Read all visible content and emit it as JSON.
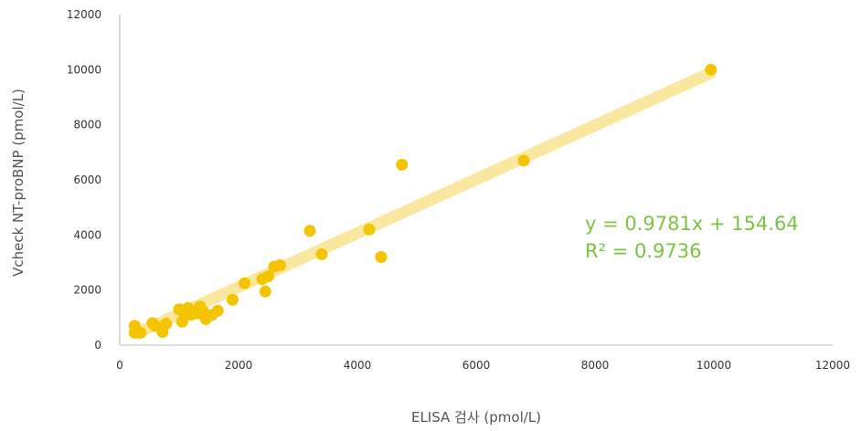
{
  "chart_data": {
    "type": "scatter",
    "title": "",
    "xlabel": "ELISA 검사 (pmol/L)",
    "ylabel": "Vcheck NT-proBNP (pmol/L)",
    "xlim": [
      0,
      12000
    ],
    "ylim": [
      0,
      12000
    ],
    "x_ticks": [
      "0",
      "2000",
      "4000",
      "6000",
      "8000",
      "10000",
      "12000"
    ],
    "y_ticks": [
      "0",
      "2000",
      "4000",
      "6000",
      "8000",
      "10000",
      "12000"
    ],
    "grid": false,
    "colors": {
      "points": "#f5c400",
      "trendline": "#fbe8a0",
      "equation": "#7cc242",
      "axis": "#bdbdbd"
    },
    "trendline": {
      "type": "linear",
      "slope": 0.9781,
      "intercept": 154.64,
      "equation_label": "y = 0.9781x + 154.64",
      "r2_label": "R² = 0.9736"
    },
    "series": [
      {
        "points": [
          [
            250,
            700
          ],
          [
            250,
            450
          ],
          [
            300,
            500
          ],
          [
            350,
            450
          ],
          [
            550,
            800
          ],
          [
            600,
            700
          ],
          [
            720,
            480
          ],
          [
            780,
            780
          ],
          [
            1000,
            1300
          ],
          [
            1050,
            850
          ],
          [
            1100,
            1100
          ],
          [
            1150,
            1350
          ],
          [
            1200,
            1100
          ],
          [
            1300,
            1150
          ],
          [
            1350,
            1400
          ],
          [
            1400,
            1250
          ],
          [
            1450,
            950
          ],
          [
            1550,
            1100
          ],
          [
            1650,
            1250
          ],
          [
            1900,
            1650
          ],
          [
            2100,
            2250
          ],
          [
            2400,
            2400
          ],
          [
            2450,
            1950
          ],
          [
            2500,
            2500
          ],
          [
            2600,
            2850
          ],
          [
            2700,
            2900
          ],
          [
            3200,
            4150
          ],
          [
            3400,
            3300
          ],
          [
            4200,
            4200
          ],
          [
            4400,
            3200
          ],
          [
            4750,
            6550
          ],
          [
            6800,
            6700
          ],
          [
            9950,
            10000
          ]
        ]
      }
    ]
  }
}
